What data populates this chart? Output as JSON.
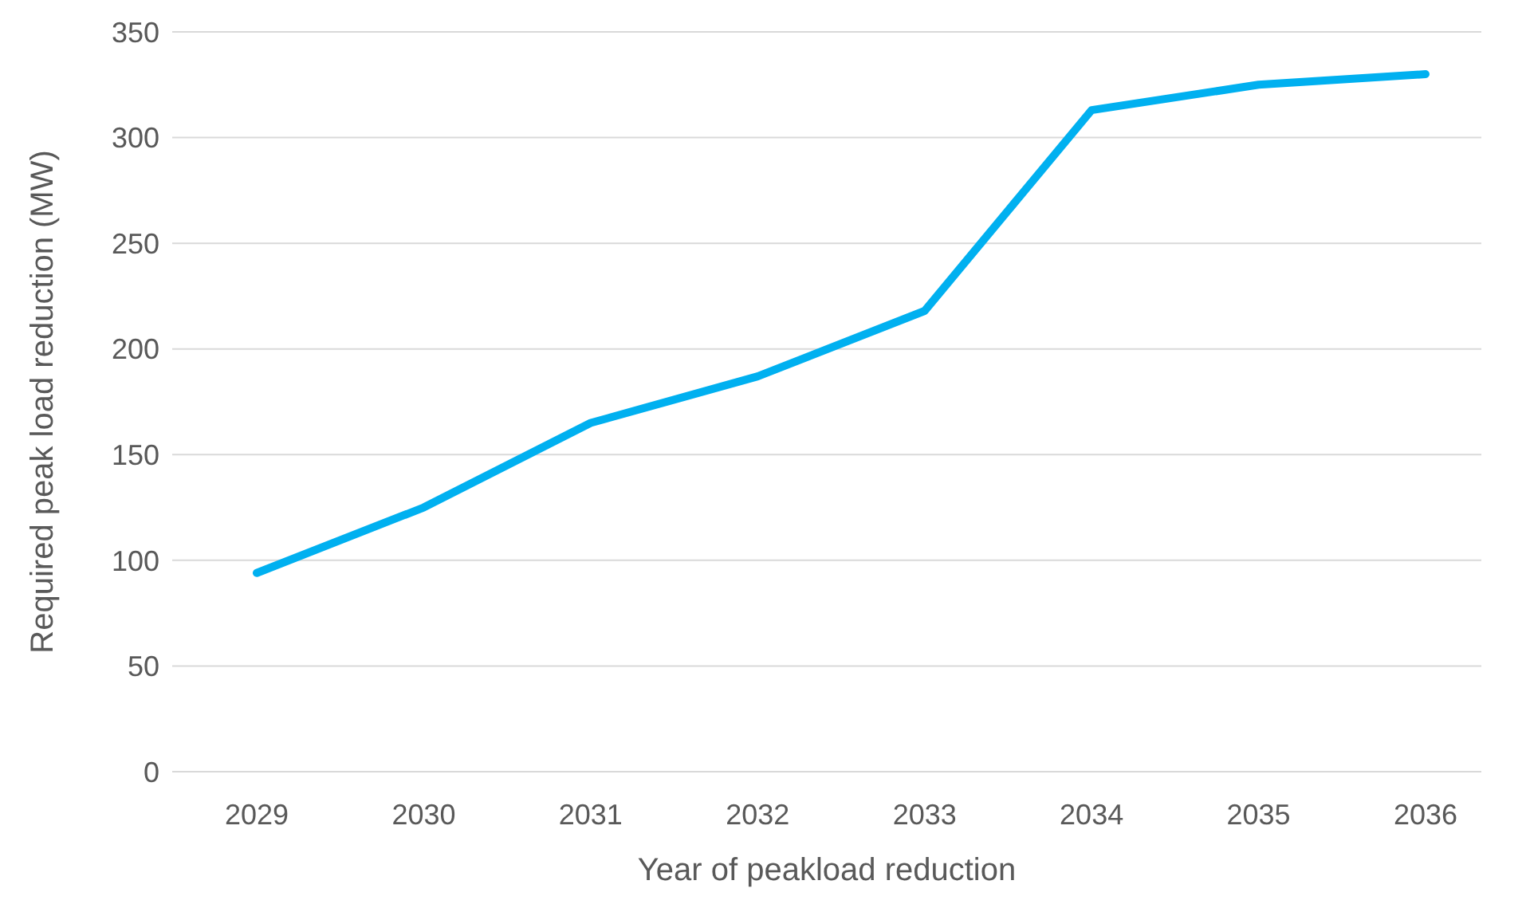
{
  "chart_data": {
    "type": "line",
    "xlabel": "Year of peakload reduction",
    "ylabel": "Required peak load reduction (MW)",
    "categories": [
      "2029",
      "2030",
      "2031",
      "2032",
      "2033",
      "2034",
      "2035",
      "2036"
    ],
    "series": [
      {
        "color": "#00b0f0",
        "values": [
          94,
          125,
          165,
          187,
          218,
          313,
          325,
          330
        ]
      }
    ],
    "ylim": [
      0,
      350
    ],
    "yticks": [
      0,
      50,
      100,
      150,
      200,
      250,
      300,
      350
    ],
    "grid": "y",
    "marker": "none",
    "line_style": "solid"
  }
}
